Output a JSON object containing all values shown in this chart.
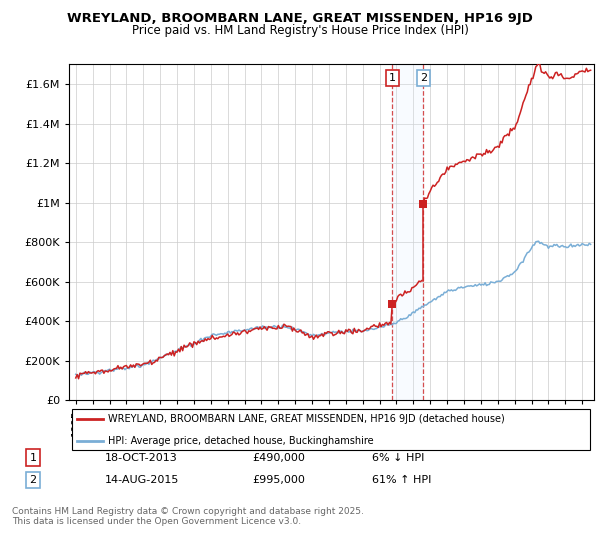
{
  "title": "WREYLAND, BROOMBARN LANE, GREAT MISSENDEN, HP16 9JD",
  "subtitle": "Price paid vs. HM Land Registry's House Price Index (HPI)",
  "ylabel_ticks": [
    "£0",
    "£200K",
    "£400K",
    "£600K",
    "£800K",
    "£1M",
    "£1.2M",
    "£1.4M",
    "£1.6M"
  ],
  "ytick_values": [
    0,
    200000,
    400000,
    600000,
    800000,
    1000000,
    1200000,
    1400000,
    1600000
  ],
  "ylim": [
    0,
    1700000
  ],
  "sale1_t": 2013.75,
  "sale1_price": 490000,
  "sale2_t": 2015.583,
  "sale2_price": 995000,
  "hpi_color": "#7aaed6",
  "price_color": "#cc2222",
  "shade_color": "#ddeeff",
  "legend_line1": "WREYLAND, BROOMBARN LANE, GREAT MISSENDEN, HP16 9JD (detached house)",
  "legend_line2": "HPI: Average price, detached house, Buckinghamshire",
  "table_row1": [
    "1",
    "18-OCT-2013",
    "£490,000",
    "6% ↓ HPI"
  ],
  "table_row2": [
    "2",
    "14-AUG-2015",
    "£995,000",
    "61% ↑ HPI"
  ],
  "footer": "Contains HM Land Registry data © Crown copyright and database right 2025.\nThis data is licensed under the Open Government Licence v3.0."
}
